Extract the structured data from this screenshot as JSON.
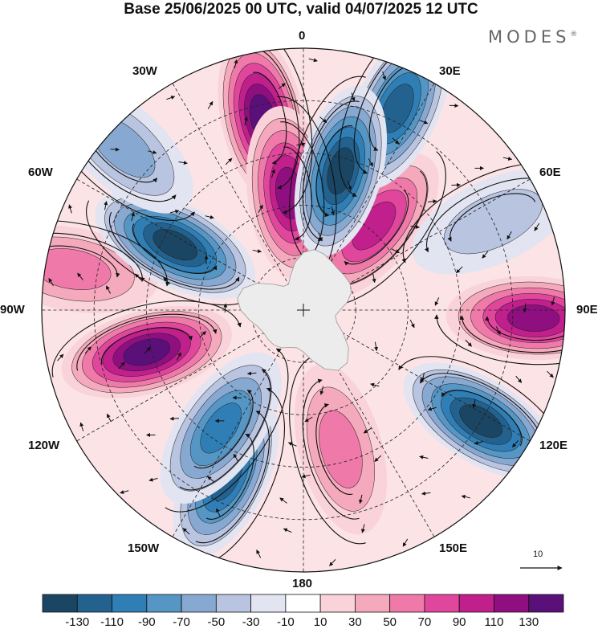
{
  "header": {
    "title": "Base 25/06/2025 00 UTC, valid 04/07/2025 12 UTC",
    "brand": "MODES",
    "brand_mark": "®"
  },
  "map": {
    "projection": "south polar stereographic",
    "longitude_labels": {
      "0": "0",
      "30E": "30E",
      "60E": "60E",
      "90E": "90E",
      "120E": "120E",
      "150E": "150E",
      "180": "180",
      "150W": "150W",
      "120W": "120W",
      "90W": "90W",
      "60W": "60W",
      "30W": "30W"
    },
    "wave_pattern": {
      "lobes_positive": [
        {
          "lon": -12,
          "lat_ring": 0.75,
          "value": 120
        },
        {
          "lon": -7,
          "lat_ring": 0.45,
          "value": 115
        },
        {
          "lon": 40,
          "lat_ring": 0.42,
          "value": 95
        },
        {
          "lon": 92,
          "lat_ring": 0.88,
          "value": 105
        },
        {
          "lon": -105,
          "lat_ring": 0.62,
          "value": 130
        },
        {
          "lon": 165,
          "lat_ring": 0.55,
          "value": 40
        },
        {
          "lon": -80,
          "lat_ring": 0.9,
          "value": 45
        }
      ],
      "lobes_negative": [
        {
          "lon": 25,
          "lat_ring": 0.85,
          "value": -110
        },
        {
          "lon": 15,
          "lat_ring": 0.55,
          "value": -120
        },
        {
          "lon": -63,
          "lat_ring": 0.55,
          "value": -120
        },
        {
          "lon": -48,
          "lat_ring": 0.93,
          "value": -55
        },
        {
          "lon": 122,
          "lat_ring": 0.8,
          "value": -120
        },
        {
          "lon": -155,
          "lat_ring": 0.7,
          "value": -110
        },
        {
          "lon": -145,
          "lat_ring": 0.55,
          "value": -95
        },
        {
          "lon": 65,
          "lat_ring": 0.8,
          "value": -25
        }
      ]
    }
  },
  "vector_reference": {
    "label": "10"
  },
  "colorbar": {
    "colors": [
      "#1a4563",
      "#23628f",
      "#2f7eb5",
      "#5596c4",
      "#87a9d1",
      "#b8c4e0",
      "#e3e4f1",
      "#ffffff",
      "#f9d3d9",
      "#f5a9bd",
      "#ef7aa9",
      "#e0469c",
      "#c01f8c",
      "#8f0f80",
      "#5a0f79"
    ],
    "tick_labels": [
      "-130",
      "-110",
      "-90",
      "-70",
      "-50",
      "-30",
      "-10",
      "10",
      "30",
      "50",
      "70",
      "90",
      "110",
      "130"
    ]
  }
}
